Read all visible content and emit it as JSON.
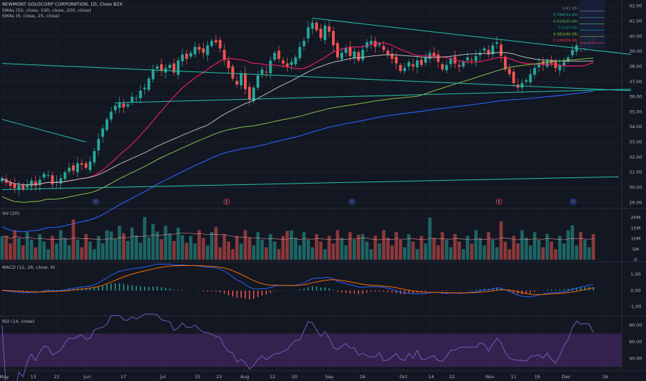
{
  "title": "NEWMONT GOLDCORP CORPORATION, 1D, Close BZX",
  "indicator_labels": {
    "sma_long": "SMAs (50, close, 100, close, 200, close)",
    "sma_short": "SMAs (6, close, 20, close)",
    "vol": "Vol (20)",
    "macd": "MACD (12, 26, close, 9)",
    "rsi": "RSI (14, close)"
  },
  "colors": {
    "background": "#131722",
    "up": "#26a69a",
    "down": "#ef5350",
    "trendline": "#26c6b0",
    "sma6": "#ef5350",
    "sma20": "#e91e63",
    "sma50": "#bdbdbd",
    "sma100": "#8bc34a",
    "sma200": "#2962ff",
    "rsi_band": "#4a2a6b",
    "rsi_line": "#7e57c2",
    "macd_line": "#2962ff",
    "signal_line": "#ff6d00"
  },
  "chart_data": [
    {
      "type": "candlestick",
      "title": "NEWMONT GOLDCORP CORPORATION, 1D, Close BZX",
      "x_ticks": [
        "May",
        "13",
        "21",
        "Jun",
        "17",
        "Jul",
        "15",
        "23",
        "Aug",
        "12",
        "20",
        "Sep",
        "16",
        "Oct",
        "14",
        "22",
        "Nov",
        "11",
        "19",
        "Dec",
        "16"
      ],
      "y_ticks": [
        "29.00",
        "30.00",
        "31.00",
        "32.00",
        "33.00",
        "34.00",
        "35.00",
        "36.00",
        "37.00",
        "38.00",
        "39.00",
        "40.00",
        "41.00",
        "42.00"
      ],
      "ylim": [
        28.6,
        42.4
      ],
      "close": [
        30.6,
        30.3,
        30.1,
        29.95,
        30.15,
        29.9,
        30.2,
        30.45,
        30.1,
        30.5,
        30.9,
        30.8,
        30.2,
        30.4,
        30.6,
        31.0,
        31.3,
        31.1,
        31.6,
        31.5,
        31.3,
        31.7,
        32.4,
        33.2,
        33.9,
        34.5,
        35.0,
        35.4,
        35.6,
        35.3,
        35.5,
        36.0,
        35.9,
        36.4,
        36.6,
        37.2,
        37.8,
        38.0,
        37.7,
        37.9,
        38.1,
        37.6,
        38.4,
        38.8,
        38.5,
        38.9,
        39.3,
        39.1,
        38.9,
        39.4,
        39.7,
        39.6,
        39.2,
        38.4,
        37.9,
        37.2,
        36.8,
        37.5,
        36.5,
        35.8,
        36.6,
        37.4,
        37.8,
        37.6,
        38.4,
        38.9,
        38.5,
        38.2,
        38.0,
        38.3,
        38.6,
        39.3,
        39.7,
        40.6,
        40.9,
        40.4,
        39.9,
        40.7,
        40.3,
        39.4,
        38.6,
        38.9,
        39.2,
        38.7,
        39.0,
        38.4,
        39.1,
        39.6,
        39.7,
        39.3,
        39.5,
        39.1,
        38.8,
        38.5,
        38.2,
        37.7,
        37.9,
        38.3,
        38.0,
        38.4,
        38.1,
        38.6,
        38.9,
        38.7,
        38.3,
        37.8,
        38.1,
        38.5,
        38.2,
        38.0,
        38.3,
        38.6,
        38.4,
        38.7,
        38.9,
        39.2,
        38.8,
        39.4,
        39.6,
        38.7,
        37.8,
        37.5,
        36.9,
        36.6,
        36.9,
        37.1,
        37.5,
        37.9,
        38.2,
        38.1,
        38.4,
        38.2,
        37.9,
        38.1,
        38.3,
        38.6,
        39.1,
        39.4,
        39.3,
        39.6,
        39.9,
        39.5
      ],
      "volume_ylim": [
        0,
        22
      ],
      "volume_ticks": [
        "0",
        "5M",
        "10M",
        "15M",
        "20M"
      ],
      "markers": [
        "D",
        "E",
        "D",
        "E",
        "D"
      ],
      "fibonacci_levels": [
        {
          "ratio": "1(41.95)",
          "color": "#787b86"
        },
        {
          "ratio": "0.786(41.40)",
          "color": "#26a69a"
        },
        {
          "ratio": "0.618(40.96)",
          "color": "#4caf50"
        },
        {
          "ratio": "0.5(40.66)",
          "color": "#009688"
        },
        {
          "ratio": "0.382(40.35)",
          "color": "#8bc34a"
        },
        {
          "ratio": "0.236(39.98)",
          "color": "#f23645"
        }
      ]
    },
    {
      "type": "area",
      "title": "MACD (12, 26, close, 9)",
      "y_ticks": [
        "-1.00",
        "0.00",
        "1.00"
      ],
      "ylim": [
        -1.4,
        1.6
      ]
    },
    {
      "type": "line",
      "title": "RSI (14, close)",
      "y_ticks": [
        "40.00",
        "60.00",
        "80.00"
      ],
      "ylim": [
        28,
        88
      ],
      "band": [
        30,
        70
      ]
    }
  ]
}
